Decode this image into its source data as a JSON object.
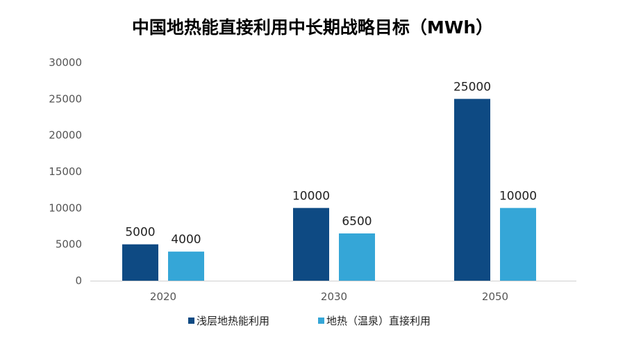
{
  "chart_data": {
    "type": "bar",
    "title": "中国地热能直接利用中长期战略目标（MWh）",
    "categories": [
      "2020",
      "2030",
      "2050"
    ],
    "series": [
      {
        "name": "浅层地热能利用",
        "values": [
          5000,
          10000,
          25000
        ],
        "color": "#0e4a83"
      },
      {
        "name": "地热（温泉）直接利用",
        "values": [
          4000,
          6500,
          10000
        ],
        "color": "#35a6d7"
      }
    ],
    "ylim": [
      0,
      30000
    ],
    "yticks": [
      0,
      5000,
      10000,
      15000,
      20000,
      25000,
      30000
    ],
    "grid": false,
    "legend": "bottom-center",
    "xlabel": "",
    "ylabel": ""
  }
}
